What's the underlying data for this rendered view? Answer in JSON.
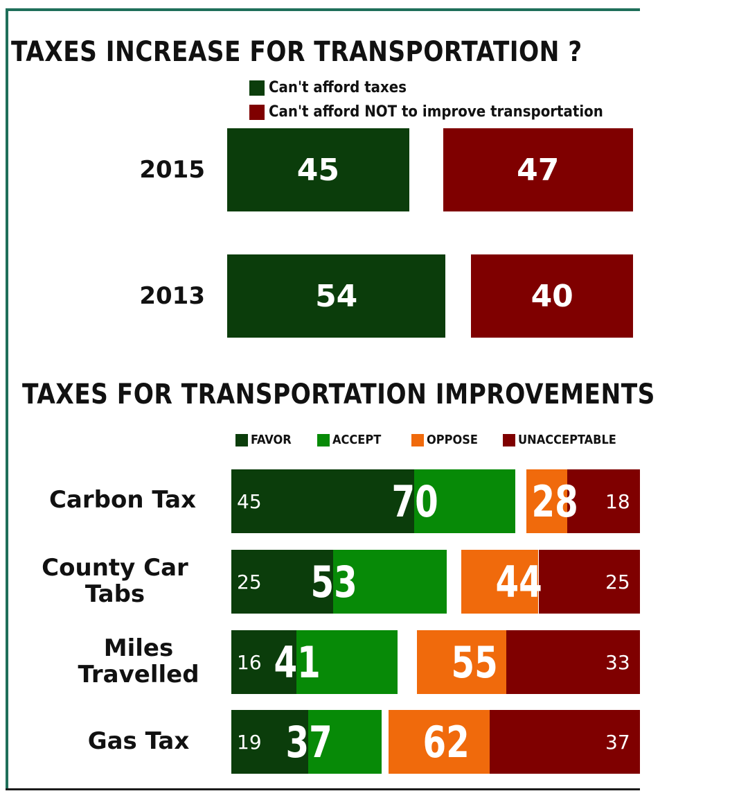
{
  "colors": {
    "dark_green": "#0b3d0b",
    "green": "#078a07",
    "orange": "#f06a0c",
    "dark_red": "#7f0000",
    "frame": "#1f6f5a"
  },
  "chart_data": [
    {
      "type": "bar",
      "title": "TAXES INCREASE FOR TRANSPORTATION ?",
      "categories": [
        "2015",
        "2013"
      ],
      "series": [
        {
          "name": "Can't afford  taxes",
          "color": "#0b3d0b",
          "values": [
            45,
            54
          ]
        },
        {
          "name": "Can't afford NOT to improve  transportation",
          "color": "#7f0000",
          "values": [
            47,
            40
          ]
        }
      ],
      "orientation": "horizontal",
      "legend": "top"
    },
    {
      "type": "bar",
      "title": "TAXES FOR TRANSPORTATION IMPROVEMENTS",
      "categories": [
        "Carbon Tax",
        "County Car Tabs",
        "Miles Travelled",
        "Gas Tax"
      ],
      "series": [
        {
          "name": "FAVOR",
          "color": "#0b3d0b",
          "values": [
            45,
            25,
            16,
            19
          ]
        },
        {
          "name": "ACCEPT",
          "color": "#078a07",
          "values": [
            25,
            28,
            25,
            18
          ]
        },
        {
          "name": "OPPOSE",
          "color": "#f06a0c",
          "values": [
            10,
            19,
            22,
            25
          ]
        },
        {
          "name": "UNACCEPTABLE",
          "color": "#7f0000",
          "values": [
            18,
            25,
            33,
            37
          ]
        }
      ],
      "totals": {
        "favor_accept": [
          70,
          53,
          41,
          37
        ],
        "oppose_unacceptable": [
          28,
          44,
          55,
          62
        ]
      },
      "orientation": "horizontal",
      "stacked": true,
      "legend": "top"
    }
  ]
}
